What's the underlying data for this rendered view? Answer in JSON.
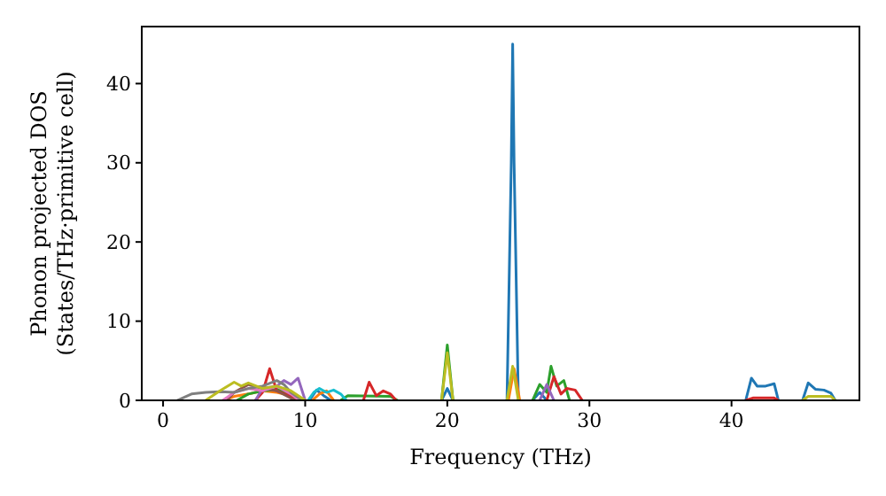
{
  "chart_data": {
    "type": "line",
    "xlabel": "Frequency (THz)",
    "ylabel": "Phonon projected DOS\n(States/THz·primitive cell)",
    "xlim": [
      -1.5,
      49
    ],
    "ylim": [
      0,
      47.2
    ],
    "xticks": [
      0,
      10,
      20,
      30,
      40
    ],
    "yticks": [
      0,
      10,
      20,
      30,
      40
    ],
    "grid": false,
    "series": [
      {
        "color": "#1f77b4",
        "x": [
          10.3,
          10.8,
          11.3,
          11.8,
          12,
          19.6,
          20,
          20.4,
          20.5,
          24.2,
          24.5,
          24.6,
          24.7,
          25,
          25.1,
          26,
          26.5,
          27,
          27.1,
          41,
          41.4,
          41.8,
          42.4,
          43,
          43.3,
          43.4,
          45,
          45.4,
          45.9,
          46.5,
          47,
          47.3
        ],
        "values": [
          0,
          1.3,
          0.6,
          0,
          null,
          0,
          1.5,
          0,
          null,
          0,
          30,
          45,
          30,
          0,
          null,
          0,
          1,
          0,
          null,
          0,
          2.8,
          1.8,
          1.8,
          2.1,
          0,
          null,
          0,
          2.2,
          1.4,
          1.3,
          0.9,
          0
        ]
      },
      {
        "color": "#ff7f0e",
        "x": [
          4.3,
          5,
          6,
          7,
          8,
          9,
          9.8,
          10,
          10.5,
          11,
          11.5,
          12,
          12.1,
          24.3,
          24.7,
          25.1
        ],
        "values": [
          0,
          0.5,
          0.8,
          1.2,
          1,
          0.6,
          0,
          null,
          0,
          0.8,
          1.2,
          0,
          null,
          0,
          4,
          0
        ]
      },
      {
        "color": "#2ca02c",
        "x": [
          5.2,
          6,
          7,
          8,
          9,
          9.6,
          9.7,
          12.5,
          13,
          16,
          16.5,
          16.6,
          19.6,
          20,
          20.4,
          20.5,
          26,
          26.5,
          27,
          27.3,
          27.7,
          28.2,
          28.6
        ],
        "values": [
          0,
          0.8,
          1.2,
          1.4,
          0.8,
          0,
          null,
          0,
          0.6,
          0.5,
          0,
          null,
          0,
          7,
          0,
          null,
          0,
          2,
          1,
          4.3,
          1.8,
          2.5,
          0
        ]
      },
      {
        "color": "#d62728",
        "x": [
          6.5,
          7,
          7.5,
          8,
          9,
          9.7,
          9.8,
          14.1,
          14.5,
          15,
          15.5,
          16,
          16.4,
          16.5,
          27,
          27.5,
          28,
          28.4,
          29,
          29.5,
          29.6,
          41,
          41.5,
          43,
          43.3
        ],
        "values": [
          0,
          1,
          4,
          1.2,
          0.5,
          0,
          null,
          0,
          2.3,
          0.6,
          1.2,
          0.8,
          0,
          null,
          0,
          3,
          0.8,
          1.5,
          1.3,
          0,
          null,
          0,
          0.3,
          0.3,
          0
        ]
      },
      {
        "color": "#9467bd",
        "x": [
          6.5,
          7,
          8,
          8.5,
          9,
          9.5,
          10,
          10.1,
          26.5,
          27,
          27.5
        ],
        "values": [
          0,
          1.5,
          1.8,
          2.5,
          2,
          2.8,
          0,
          null,
          0,
          2,
          0
        ]
      },
      {
        "color": "#8c564b",
        "x": [
          4.5,
          5,
          6,
          7,
          8,
          9.3
        ],
        "values": [
          0,
          1,
          2,
          1.5,
          1.2,
          0
        ]
      },
      {
        "color": "#e377c2",
        "x": [
          4.2,
          5,
          6,
          7,
          8,
          9,
          9.6
        ],
        "values": [
          0,
          1,
          1.5,
          1.2,
          1.8,
          0.8,
          0
        ]
      },
      {
        "color": "#7f7f7f",
        "x": [
          1,
          2,
          3,
          4,
          5,
          6,
          7,
          8,
          8.5,
          9,
          9.8
        ],
        "values": [
          0,
          0.8,
          1,
          1.1,
          1,
          1.5,
          1.8,
          2.5,
          2,
          1,
          0
        ]
      },
      {
        "color": "#bcbd22",
        "x": [
          3,
          4,
          5,
          5.5,
          6,
          7,
          8,
          9,
          10,
          10.1,
          19.6,
          20,
          20.4,
          20.5,
          24.2,
          24.6,
          25,
          25.1,
          45,
          45.4,
          47,
          47.3
        ],
        "values": [
          0,
          1.2,
          2.3,
          1.8,
          2.2,
          1.5,
          1.8,
          1.2,
          0,
          null,
          0,
          6,
          0,
          null,
          0,
          4.3,
          0,
          null,
          0,
          0.5,
          0.5,
          0
        ]
      },
      {
        "color": "#17becf",
        "x": [
          10.2,
          10.6,
          11,
          11.5,
          12,
          12.5,
          12.9
        ],
        "values": [
          0,
          1,
          1.5,
          1,
          1.3,
          0.8,
          0
        ]
      }
    ]
  }
}
